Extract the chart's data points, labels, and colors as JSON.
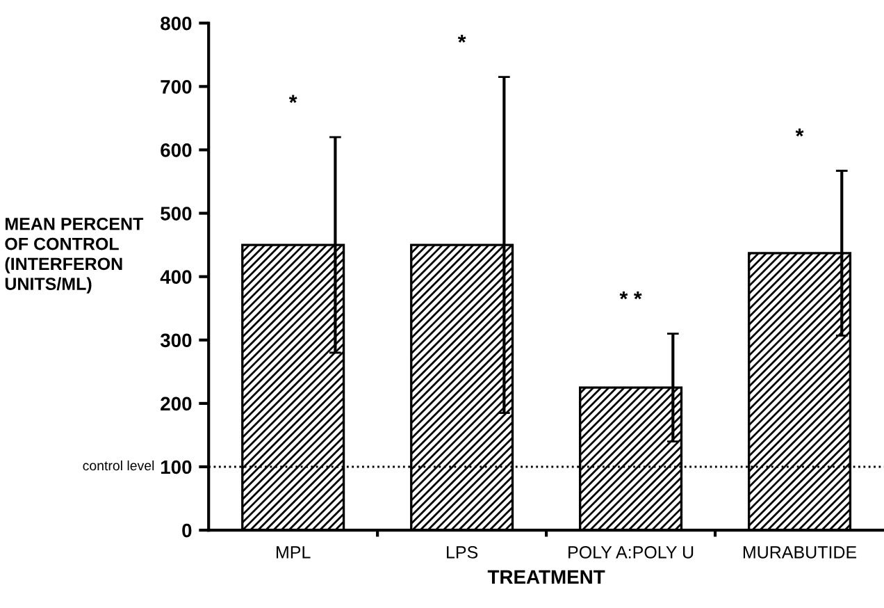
{
  "chart_data": {
    "type": "bar",
    "xlabel": "TREATMENT",
    "ylabel": "MEAN PERCENT\nOF CONTROL\n(INTERFERON\nUNITS/ML)",
    "categories": [
      "MPL",
      "LPS",
      "POLY A:POLY U",
      "MURABUTIDE"
    ],
    "values": [
      450,
      450,
      225,
      437
    ],
    "errors": [
      170,
      265,
      85,
      130
    ],
    "color": "#000000",
    "ylim": [
      0,
      800
    ],
    "yticks": [
      0,
      100,
      200,
      300,
      400,
      500,
      600,
      700,
      800
    ],
    "ref_lines": [
      {
        "axis": "y",
        "value": 100,
        "label": "control level",
        "line_style": "dotted"
      }
    ],
    "annotations": [
      "*",
      "*",
      "* *",
      "*"
    ],
    "grid": false
  }
}
